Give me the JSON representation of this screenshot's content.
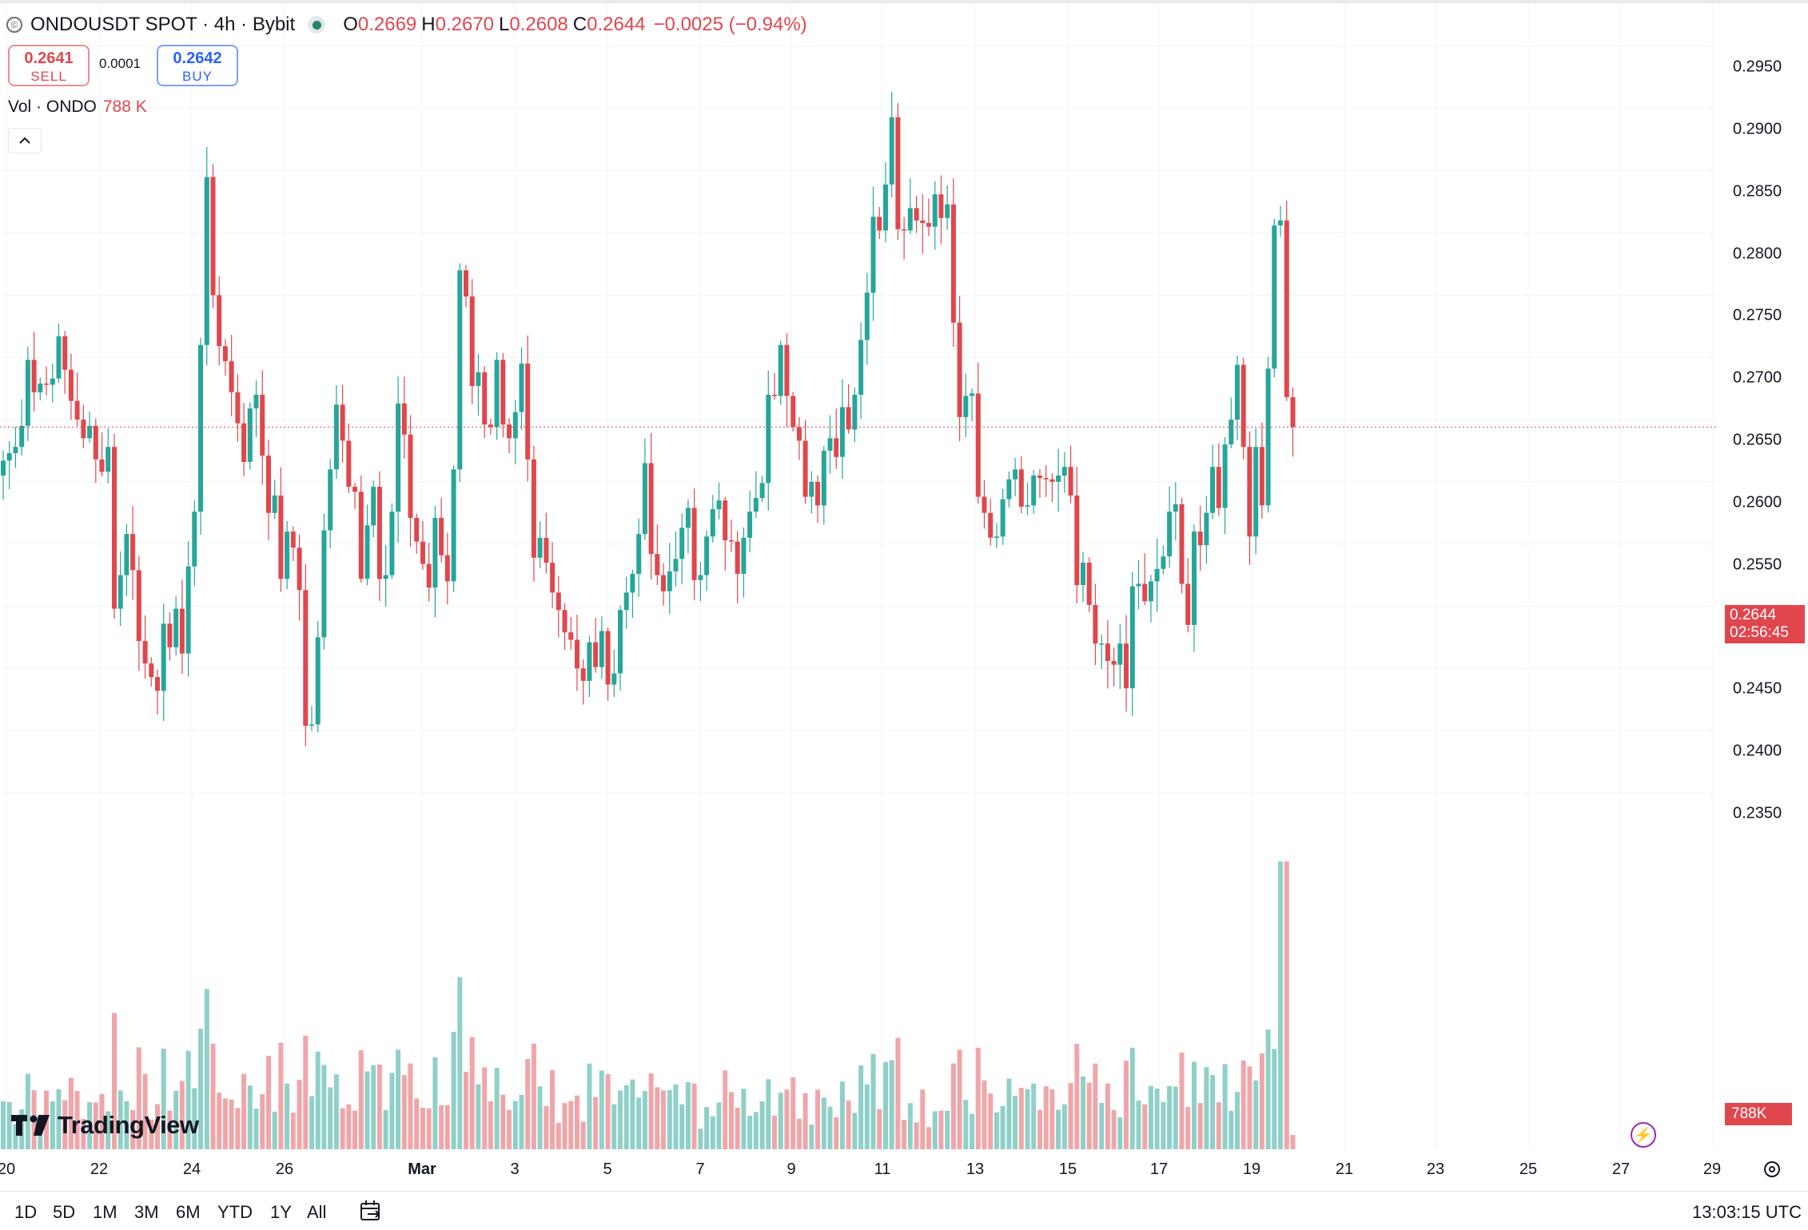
{
  "header": {
    "symbol": "ONDOUSDT SPOT · 4h · Bybit",
    "open_label": "O",
    "open": "0.2669",
    "high_label": "H",
    "high": "0.2670",
    "low_label": "L",
    "low": "0.2608",
    "close_label": "C",
    "close": "0.2644",
    "change": "−0.0025 (−0.94%)"
  },
  "trade": {
    "sell_price": "0.2641",
    "sell_label": "SELL",
    "spread": "0.0001",
    "buy_price": "0.2642",
    "buy_label": "BUY"
  },
  "volume_legend": {
    "label": "Vol · ONDO",
    "value": "788 K"
  },
  "price_axis": {
    "ticks": [
      "0.2950",
      "0.2900",
      "0.2850",
      "0.2800",
      "0.2750",
      "0.2700",
      "0.2650",
      "0.2600",
      "0.2550",
      "0.2500",
      "0.2450",
      "0.2400",
      "0.2350"
    ],
    "last_price": "0.2644",
    "countdown": "02:56:45",
    "volume_tag": "788K"
  },
  "time_axis": {
    "ticks": [
      "20",
      "22",
      "24",
      "26",
      "Mar",
      "3",
      "5",
      "7",
      "9",
      "11",
      "13",
      "15",
      "17",
      "19",
      "21",
      "23",
      "25",
      "27",
      "29"
    ]
  },
  "watermark": "TradingView",
  "bottom_bar": {
    "ranges": [
      "1D",
      "5D",
      "1M",
      "3M",
      "6M",
      "YTD",
      "1Y",
      "All"
    ],
    "clock": "13:03:15 UTC"
  },
  "colors": {
    "up": "#26a69a",
    "down": "#e0474d",
    "up_volume": "#8fd0c8",
    "down_volume": "#f0a6a9"
  },
  "chart_data": {
    "type": "candlestick",
    "symbol": "ONDOUSDT",
    "interval": "4h",
    "ylim": [
      0.234,
      0.296
    ],
    "x_range": [
      "Feb 20",
      "Mar 29"
    ],
    "closes": [
      0.2617,
      0.2623,
      0.2628,
      0.2645,
      0.2698,
      0.2672,
      0.2679,
      0.2678,
      0.2683,
      0.2717,
      0.269,
      0.2665,
      0.265,
      0.2635,
      0.2645,
      0.2618,
      0.2608,
      0.2628,
      0.2498,
      0.2525,
      0.2558,
      0.2529,
      0.2472,
      0.2454,
      0.2443,
      0.2432,
      0.2486,
      0.2467,
      0.2498,
      0.2462,
      0.2532,
      0.2576,
      0.271,
      0.2845,
      0.275,
      0.2709,
      0.2697,
      0.2672,
      0.2647,
      0.2616,
      0.2659,
      0.267,
      0.2621,
      0.2575,
      0.2589,
      0.2522,
      0.256,
      0.2547,
      0.2513,
      0.2404,
      0.2405,
      0.2475,
      0.2561,
      0.261,
      0.2662,
      0.2633,
      0.2596,
      0.2592,
      0.2522,
      0.2565,
      0.2596,
      0.2522,
      0.2525,
      0.2576,
      0.2663,
      0.2638,
      0.2571,
      0.2552,
      0.2534,
      0.2515,
      0.2571,
      0.2541,
      0.252,
      0.261,
      0.277,
      0.2749,
      0.2677,
      0.2688,
      0.2646,
      0.2644,
      0.2698,
      0.2646,
      0.2635,
      0.2656,
      0.2695,
      0.2618,
      0.2539,
      0.2555,
      0.2535,
      0.2511,
      0.2497,
      0.2479,
      0.2473,
      0.245,
      0.244,
      0.2471,
      0.2451,
      0.248,
      0.2437,
      0.2446,
      0.2497,
      0.2511,
      0.2526,
      0.2558,
      0.2615,
      0.2542,
      0.2525,
      0.2512,
      0.2528,
      0.2538,
      0.2563,
      0.2579,
      0.2521,
      0.2525,
      0.2556,
      0.2578,
      0.2585,
      0.2553,
      0.2552,
      0.2526,
      0.2555,
      0.2576,
      0.2587,
      0.2599,
      0.267,
      0.2669,
      0.271,
      0.2669,
      0.2644,
      0.2633,
      0.2588,
      0.26,
      0.2581,
      0.2625,
      0.2635,
      0.262,
      0.266,
      0.2642,
      0.267,
      0.2714,
      0.2752,
      0.2813,
      0.2802,
      0.2839,
      0.2893,
      0.2803,
      0.2802,
      0.282,
      0.281,
      0.2808,
      0.2805,
      0.2831,
      0.2812,
      0.2823,
      0.2728,
      0.2652,
      0.2669,
      0.2671,
      0.2588,
      0.2575,
      0.2555,
      0.2556,
      0.2586,
      0.2602,
      0.261,
      0.258,
      0.2581,
      0.2605,
      0.2603,
      0.2602,
      0.26,
      0.2605,
      0.2612,
      0.2589,
      0.2517,
      0.2535,
      0.2501,
      0.247,
      0.247,
      0.2456,
      0.2453,
      0.247,
      0.2434,
      0.2516,
      0.2518,
      0.2504,
      0.252,
      0.253,
      0.254,
      0.2576,
      0.2582,
      0.2518,
      0.2485,
      0.256,
      0.2549,
      0.2575,
      0.2612,
      0.2579,
      0.263,
      0.265,
      0.2694,
      0.2628,
      0.2556,
      0.2628,
      0.2581,
      0.2691,
      0.2806,
      0.281,
      0.2668,
      0.2644
    ],
    "volume_shape": "volume ranges from about 0 to 788K per bar; spikes near Feb 25-26 and Mar 27"
  }
}
